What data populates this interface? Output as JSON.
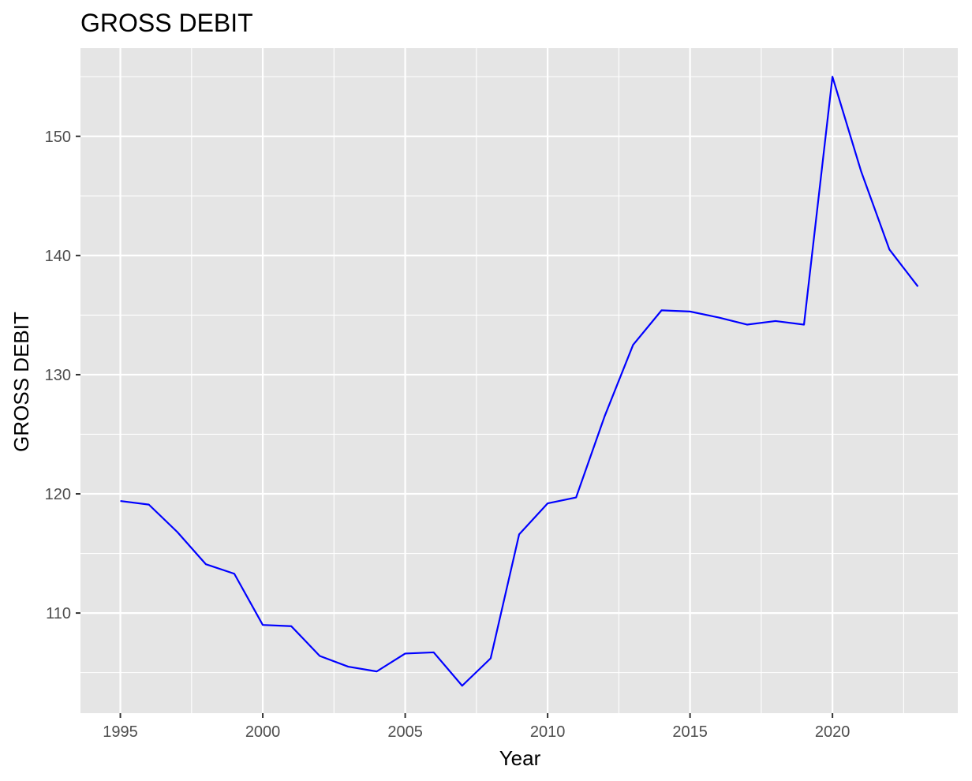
{
  "chart_data": {
    "type": "line",
    "title": "GROSS DEBIT",
    "xlabel": "Year",
    "ylabel": "GROSS DEBIT",
    "xlim": [
      1993.6,
      2024.4
    ],
    "ylim": [
      101.6,
      157.4
    ],
    "x_ticks": [
      1995,
      2000,
      2005,
      2010,
      2015,
      2020
    ],
    "x_tick_labels": [
      "1995",
      "2000",
      "2005",
      "2010",
      "2015",
      "2020"
    ],
    "y_ticks": [
      110,
      120,
      130,
      140,
      150
    ],
    "y_tick_labels": [
      "110",
      "120",
      "130",
      "140",
      "150"
    ],
    "grid": true,
    "colors": {
      "panel": "#e5e5e5",
      "grid": "#ffffff",
      "line": "#0000ff"
    },
    "series": [
      {
        "x": [
          1995,
          1996,
          1997,
          1998,
          1999,
          2000,
          2001,
          2002,
          2003,
          2004,
          2005,
          2006,
          2007,
          2008,
          2009,
          2010,
          2011,
          2012,
          2013,
          2014,
          2015,
          2016,
          2017,
          2018,
          2019,
          2020,
          2021,
          2022,
          2023
        ],
        "values": [
          119.4,
          119.1,
          116.8,
          114.1,
          113.3,
          109.0,
          108.9,
          106.4,
          105.5,
          105.1,
          106.6,
          106.7,
          103.9,
          106.2,
          116.6,
          119.2,
          119.7,
          126.5,
          132.5,
          135.4,
          135.3,
          134.8,
          134.2,
          134.5,
          134.2,
          155.0,
          147.1,
          140.5,
          137.4
        ]
      }
    ]
  }
}
